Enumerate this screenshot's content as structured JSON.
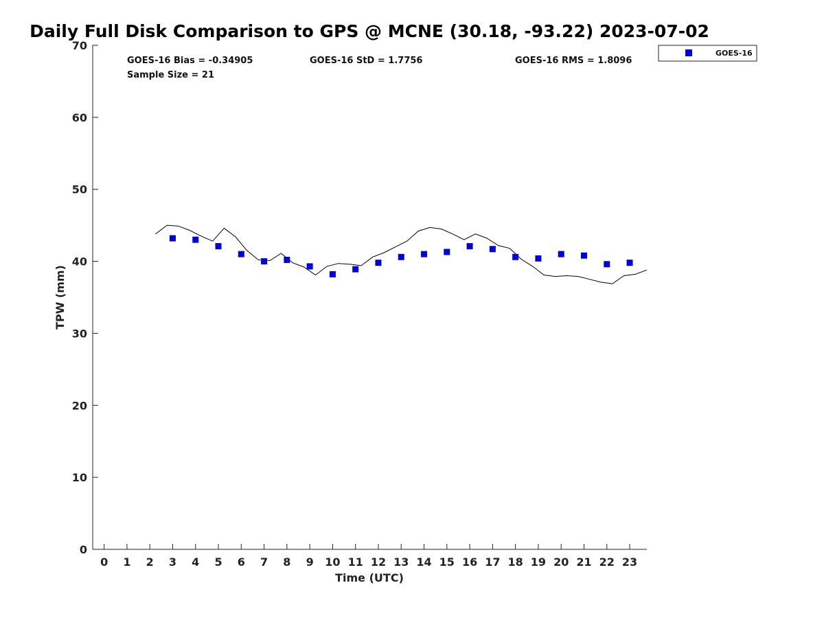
{
  "chart_data": {
    "type": "scatter",
    "title": "Daily Full Disk Comparison to GPS @ MCNE (30.18, -93.22) 2023-07-02",
    "xlabel": "Time (UTC)",
    "ylabel": "TPW (mm)",
    "xlim": [
      -0.5,
      23.75
    ],
    "ylim": [
      0,
      70
    ],
    "x_ticks": [
      0,
      1,
      2,
      3,
      4,
      5,
      6,
      7,
      8,
      9,
      10,
      11,
      12,
      13,
      14,
      15,
      16,
      17,
      18,
      19,
      20,
      21,
      22,
      23
    ],
    "y_ticks": [
      0,
      10,
      20,
      30,
      40,
      50,
      60,
      70
    ],
    "grid": false,
    "legend_position": "top-right",
    "series": [
      {
        "name": "GOES-16",
        "kind": "scatter",
        "color": "#0000dd",
        "marker": "square",
        "x": [
          3,
          4,
          5,
          6,
          7,
          8,
          9,
          10,
          11,
          12,
          13,
          14,
          15,
          16,
          17,
          18,
          19,
          20,
          21,
          22,
          23
        ],
        "y": [
          43.2,
          43.0,
          42.1,
          41.0,
          40.0,
          40.2,
          39.3,
          38.2,
          38.9,
          39.8,
          40.6,
          41.0,
          41.3,
          42.1,
          41.7,
          40.6,
          40.4,
          41.0,
          40.8,
          39.6,
          39.8
        ]
      },
      {
        "kind": "line",
        "color": "#000000",
        "x": [
          2.25,
          2.75,
          3.25,
          3.75,
          4.25,
          4.75,
          5.25,
          5.75,
          6.25,
          6.75,
          7.25,
          7.75,
          8.25,
          8.75,
          9.25,
          9.75,
          10.25,
          10.75,
          11.25,
          11.75,
          12.25,
          12.75,
          13.25,
          13.75,
          14.25,
          14.75,
          15.25,
          15.75,
          16.25,
          16.75,
          17.25,
          17.75,
          18.25,
          18.75,
          19.25,
          19.75,
          20.25,
          20.75,
          21.25,
          21.75,
          22.25,
          22.75,
          23.25,
          23.75
        ],
        "y": [
          43.8,
          45.0,
          44.9,
          44.3,
          43.5,
          42.8,
          44.6,
          43.4,
          41.5,
          40.2,
          40.1,
          41.1,
          39.8,
          39.2,
          38.1,
          39.3,
          39.7,
          39.6,
          39.4,
          40.6,
          41.2,
          42.0,
          42.8,
          44.2,
          44.7,
          44.5,
          43.8,
          43.0,
          43.8,
          43.2,
          42.2,
          41.8,
          40.3,
          39.3,
          38.1,
          37.9,
          38.0,
          37.9,
          37.5,
          37.1,
          36.9,
          38.0,
          38.2,
          38.8
        ]
      }
    ],
    "stats": {
      "bias": "GOES-16 Bias = -0.34905",
      "std": "GOES-16 StD = 1.7756",
      "rms": "GOES-16 RMS = 1.8096",
      "sample": "Sample Size = 21"
    }
  }
}
